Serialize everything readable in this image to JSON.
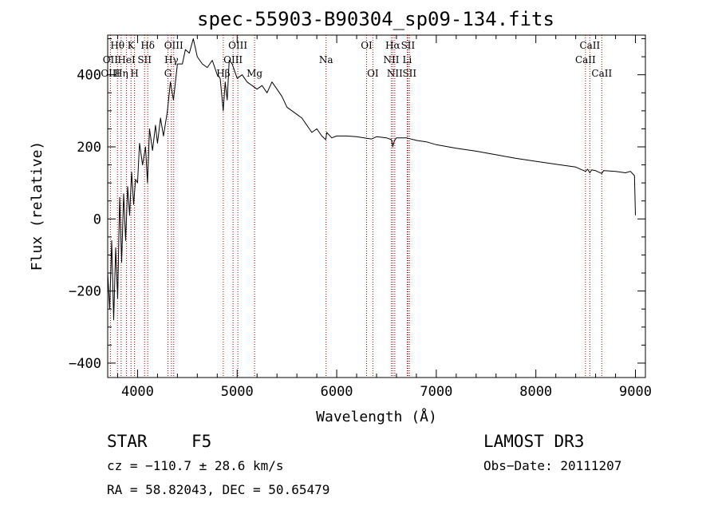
{
  "chart_data": {
    "type": "line",
    "title": "spec-55903-B90304_sp09-134.fits",
    "xlabel": "Wavelength (Å)",
    "ylabel": "Flux (relative)",
    "xlim": [
      3700,
      9100
    ],
    "ylim": [
      -440,
      510
    ],
    "xticks": [
      "4000",
      "5000",
      "6000",
      "7000",
      "8000",
      "9000"
    ],
    "yticks": [
      "-400",
      "-200",
      "0",
      "200",
      "400"
    ],
    "series": [
      {
        "name": "flux",
        "points": [
          [
            3700,
            -150
          ],
          [
            3720,
            -250
          ],
          [
            3740,
            -60
          ],
          [
            3760,
            -280
          ],
          [
            3780,
            -80
          ],
          [
            3800,
            -220
          ],
          [
            3820,
            60
          ],
          [
            3840,
            -120
          ],
          [
            3860,
            70
          ],
          [
            3880,
            -60
          ],
          [
            3900,
            90
          ],
          [
            3920,
            10
          ],
          [
            3940,
            130
          ],
          [
            3960,
            40
          ],
          [
            3980,
            110
          ],
          [
            4000,
            100
          ],
          [
            4020,
            210
          ],
          [
            4050,
            150
          ],
          [
            4080,
            200
          ],
          [
            4100,
            100
          ],
          [
            4120,
            250
          ],
          [
            4150,
            190
          ],
          [
            4180,
            260
          ],
          [
            4200,
            210
          ],
          [
            4230,
            280
          ],
          [
            4260,
            230
          ],
          [
            4300,
            300
          ],
          [
            4330,
            380
          ],
          [
            4360,
            330
          ],
          [
            4400,
            430
          ],
          [
            4450,
            430
          ],
          [
            4480,
            470
          ],
          [
            4520,
            460
          ],
          [
            4560,
            500
          ],
          [
            4600,
            450
          ],
          [
            4650,
            430
          ],
          [
            4700,
            420
          ],
          [
            4750,
            440
          ],
          [
            4800,
            400
          ],
          [
            4830,
            390
          ],
          [
            4860,
            300
          ],
          [
            4880,
            380
          ],
          [
            4900,
            330
          ],
          [
            4920,
            440
          ],
          [
            4950,
            430
          ],
          [
            5000,
            390
          ],
          [
            5050,
            400
          ],
          [
            5100,
            380
          ],
          [
            5150,
            370
          ],
          [
            5200,
            360
          ],
          [
            5250,
            370
          ],
          [
            5300,
            350
          ],
          [
            5350,
            380
          ],
          [
            5400,
            360
          ],
          [
            5450,
            340
          ],
          [
            5500,
            310
          ],
          [
            5550,
            300
          ],
          [
            5600,
            290
          ],
          [
            5650,
            280
          ],
          [
            5700,
            260
          ],
          [
            5750,
            240
          ],
          [
            5800,
            250
          ],
          [
            5850,
            230
          ],
          [
            5890,
            220
          ],
          [
            5900,
            240
          ],
          [
            5950,
            225
          ],
          [
            6000,
            230
          ],
          [
            6100,
            230
          ],
          [
            6200,
            228
          ],
          [
            6300,
            224
          ],
          [
            6350,
            222
          ],
          [
            6400,
            228
          ],
          [
            6500,
            225
          ],
          [
            6550,
            220
          ],
          [
            6563,
            200
          ],
          [
            6580,
            218
          ],
          [
            6600,
            225
          ],
          [
            6700,
            225
          ],
          [
            6800,
            218
          ],
          [
            6900,
            214
          ],
          [
            7000,
            206
          ],
          [
            7200,
            196
          ],
          [
            7400,
            188
          ],
          [
            7600,
            178
          ],
          [
            7800,
            168
          ],
          [
            8000,
            160
          ],
          [
            8200,
            152
          ],
          [
            8400,
            144
          ],
          [
            8498,
            132
          ],
          [
            8520,
            138
          ],
          [
            8542,
            128
          ],
          [
            8560,
            136
          ],
          [
            8600,
            134
          ],
          [
            8662,
            126
          ],
          [
            8680,
            134
          ],
          [
            8800,
            132
          ],
          [
            8900,
            128
          ],
          [
            8950,
            132
          ],
          [
            8990,
            120
          ],
          [
            9000,
            10
          ]
        ]
      }
    ],
    "lines": [
      {
        "label": "Hθ",
        "wl": 3798,
        "row": 0
      },
      {
        "label": "OII",
        "wl": 3727,
        "row": 1
      },
      {
        "label": "OIII",
        "wl": 3727,
        "row": 2
      },
      {
        "label": "K",
        "wl": 3934,
        "row": 0
      },
      {
        "label": "HeI",
        "wl": 3889,
        "row": 1
      },
      {
        "label": "Hη",
        "wl": 3835,
        "row": 2
      },
      {
        "label": "Hδ",
        "wl": 4102,
        "row": 0
      },
      {
        "label": "SII",
        "wl": 4070,
        "row": 1
      },
      {
        "label": "H",
        "wl": 3969,
        "row": 2
      },
      {
        "label": "OIII",
        "wl": 4363,
        "row": 0
      },
      {
        "label": "Hγ",
        "wl": 4340,
        "row": 1
      },
      {
        "label": "G",
        "wl": 4305,
        "row": 2
      },
      {
        "label": "Hβ",
        "wl": 4861,
        "row": 2
      },
      {
        "label": "OIII",
        "wl": 5007,
        "row": 0
      },
      {
        "label": "OIII",
        "wl": 4959,
        "row": 1
      },
      {
        "label": "Mg",
        "wl": 5175,
        "row": 2
      },
      {
        "label": "Na",
        "wl": 5893,
        "row": 1
      },
      {
        "label": "OI",
        "wl": 6300,
        "row": 0
      },
      {
        "label": "OI",
        "wl": 6363,
        "row": 2
      },
      {
        "label": "Hα",
        "wl": 6563,
        "row": 0
      },
      {
        "label": "SII",
        "wl": 6716,
        "row": 0
      },
      {
        "label": "NII",
        "wl": 6548,
        "row": 1
      },
      {
        "label": "Li",
        "wl": 6708,
        "row": 1
      },
      {
        "label": "NII",
        "wl": 6583,
        "row": 2
      },
      {
        "label": "SII",
        "wl": 6731,
        "row": 2
      },
      {
        "label": "CaII",
        "wl": 8542,
        "row": 0
      },
      {
        "label": "CaII",
        "wl": 8498,
        "row": 1
      },
      {
        "label": "CaII",
        "wl": 8662,
        "row": 2
      }
    ]
  },
  "info": {
    "object_class": "STAR",
    "subclass": "F5",
    "survey": "LAMOST DR3",
    "cz": "cz = −110.7 ± 28.6 km/s",
    "obs_date": "Obs−Date: 20111207",
    "radec": "RA =  58.82043, DEC =  50.65479"
  },
  "colors": {
    "ink": "#000000",
    "marker": "#a40000",
    "background": "#ffffff"
  }
}
